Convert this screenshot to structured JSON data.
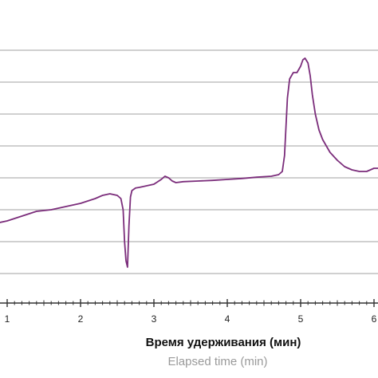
{
  "chart_data": {
    "type": "line",
    "title": "",
    "xlabel": "Время удерживания (мин)",
    "xlabel_secondary": "Elapsed time (min)",
    "ylabel": "",
    "xlim": [
      0.9,
      6.05
    ],
    "ylim": [
      -1.0,
      7.5
    ],
    "x_tick_labels": [
      "1",
      "2",
      "3",
      "4",
      "5",
      "6"
    ],
    "x_ticks": [
      1,
      2,
      3,
      4,
      5,
      6
    ],
    "x_minor_step": 0.1,
    "y_gridlines": [
      0,
      1,
      2,
      3,
      4,
      5,
      6,
      7
    ],
    "grid": "horizontal",
    "legend": "none",
    "series": [
      {
        "color": "#7b2d7b",
        "x": [
          0.9,
          1.0,
          1.2,
          1.4,
          1.6,
          1.8,
          2.0,
          2.2,
          2.3,
          2.4,
          2.5,
          2.55,
          2.58,
          2.6,
          2.62,
          2.64,
          2.66,
          2.68,
          2.7,
          2.75,
          2.8,
          2.9,
          3.0,
          3.1,
          3.15,
          3.2,
          3.25,
          3.3,
          3.4,
          3.6,
          3.8,
          4.0,
          4.2,
          4.4,
          4.6,
          4.7,
          4.75,
          4.78,
          4.8,
          4.82,
          4.85,
          4.9,
          4.95,
          5.0,
          5.03,
          5.06,
          5.1,
          5.13,
          5.16,
          5.2,
          5.25,
          5.3,
          5.35,
          5.4,
          5.5,
          5.6,
          5.7,
          5.8,
          5.9,
          6.0,
          6.05
        ],
        "y": [
          1.6,
          1.65,
          1.8,
          1.95,
          2.0,
          2.1,
          2.2,
          2.35,
          2.45,
          2.5,
          2.45,
          2.35,
          2.0,
          1.0,
          0.4,
          0.2,
          1.5,
          2.4,
          2.6,
          2.68,
          2.7,
          2.75,
          2.8,
          2.95,
          3.05,
          3.0,
          2.9,
          2.85,
          2.88,
          2.9,
          2.92,
          2.95,
          2.98,
          3.02,
          3.05,
          3.1,
          3.2,
          3.7,
          4.6,
          5.5,
          6.1,
          6.3,
          6.3,
          6.5,
          6.7,
          6.75,
          6.6,
          6.2,
          5.6,
          5.0,
          4.5,
          4.2,
          4.0,
          3.8,
          3.55,
          3.35,
          3.25,
          3.2,
          3.2,
          3.3,
          3.3
        ]
      }
    ]
  }
}
